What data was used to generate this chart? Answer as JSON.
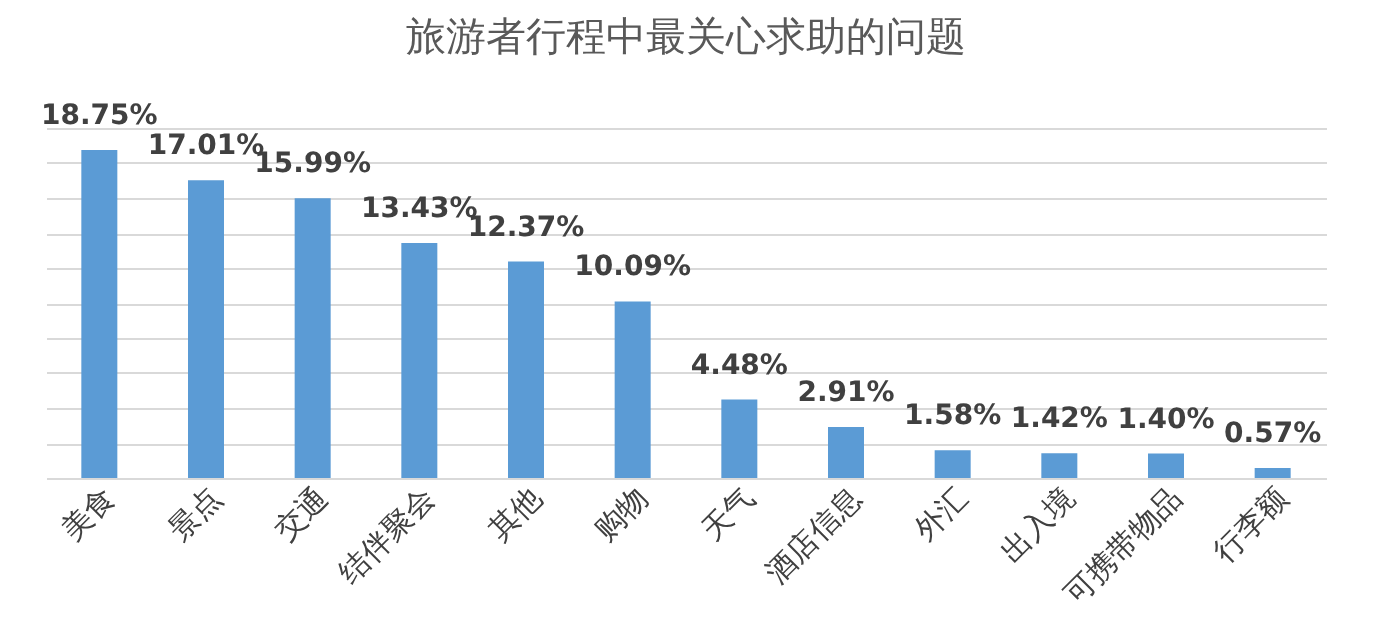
{
  "chart_data": {
    "type": "bar",
    "title": "旅游者行程中最关心求助的问题",
    "categories": [
      "美食",
      "景点",
      "交通",
      "结伴聚会",
      "其他",
      "购物",
      "天气",
      "酒店信息",
      "外汇",
      "出入境",
      "可携带物品",
      "行李额"
    ],
    "values": [
      18.75,
      17.01,
      15.99,
      13.43,
      12.37,
      10.09,
      4.48,
      2.91,
      1.58,
      1.42,
      1.4,
      0.57
    ],
    "value_labels": [
      "18.75%",
      "17.01%",
      "15.99%",
      "13.43%",
      "12.37%",
      "10.09%",
      "4.48%",
      "2.91%",
      "1.58%",
      "1.42%",
      "1.40%",
      "0.57%"
    ],
    "color": "#5b9bd5",
    "tick_labels": "x",
    "grid": "y"
  }
}
